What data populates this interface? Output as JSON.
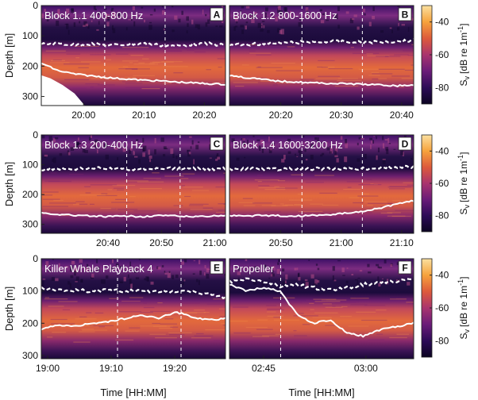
{
  "figure": {
    "depth_ylabel": "Depth [m]",
    "time_xlabel": "Time [HH:MM]"
  },
  "colorbar": {
    "label": "S",
    "label_sub": "v",
    "label_units": "[dB re 1m",
    "label_sup": "-1",
    "label_close": "]",
    "ticks": [
      "-40",
      "-60",
      "-80"
    ],
    "range": [
      -90,
      -30
    ],
    "colors": [
      "#0b0421",
      "#2c0b57",
      "#6a1c78",
      "#a9346e",
      "#dd5a3b",
      "#f6a23c",
      "#fbe0a0"
    ]
  },
  "chart_data": [
    {
      "type": "heatmap",
      "panel_letter": "A",
      "title": "Block 1.1 400-800 Hz",
      "xticks": [
        "20:00",
        "20:10",
        "20:20"
      ],
      "xtick_min": [
        0,
        10,
        20
      ],
      "xrange_min": [
        -7,
        23.5
      ],
      "yticks": [
        "0",
        "100",
        "200",
        "300"
      ],
      "ylim": [
        0,
        330
      ],
      "dashed_lines_min": [
        3.5,
        13.5
      ],
      "layer_top_depth_m": [
        128,
        125,
        130,
        126,
        132,
        128,
        125,
        130,
        134,
        128,
        126,
        131
      ],
      "layer_bottom_depth_m": [
        190,
        215,
        226,
        232,
        238,
        242,
        246,
        248,
        252,
        255,
        258,
        260
      ],
      "seafloor_mask": true
    },
    {
      "type": "heatmap",
      "panel_letter": "B",
      "title": "Block 1.2 800-1600 Hz",
      "xticks": [
        "20:20",
        "20:30",
        "20:40"
      ],
      "xtick_min": [
        20,
        30,
        40
      ],
      "xrange_min": [
        11.5,
        42
      ],
      "yticks": [],
      "ylim": [
        0,
        330
      ],
      "dashed_lines_min": [
        23.5,
        33.5
      ],
      "layer_top_depth_m": [
        130,
        128,
        126,
        124,
        122,
        120,
        118,
        120,
        122,
        120,
        118,
        115
      ],
      "layer_bottom_depth_m": [
        230,
        238,
        244,
        250,
        252,
        255,
        257,
        258,
        260,
        262,
        265,
        262
      ],
      "seafloor_mask": false
    },
    {
      "type": "heatmap",
      "panel_letter": "C",
      "title": "Block 1.3 200-400 Hz",
      "xticks": [
        "20:40",
        "20:50",
        "21:00"
      ],
      "xtick_min": [
        40,
        50,
        60
      ],
      "xrange_min": [
        27.5,
        62
      ],
      "yticks": [
        "0",
        "100",
        "200",
        "300"
      ],
      "ylim": [
        0,
        330
      ],
      "dashed_lines_min": [
        43.5,
        53.5
      ],
      "layer_top_depth_m": [
        115,
        113,
        114,
        112,
        113,
        115,
        114,
        112,
        113,
        112,
        114,
        113
      ],
      "layer_bottom_depth_m": [
        262,
        266,
        270,
        272,
        274,
        272,
        274,
        270,
        272,
        274,
        272,
        270
      ],
      "seafloor_mask": false
    },
    {
      "type": "heatmap",
      "panel_letter": "D",
      "title": "Block 1.4 1600-3200 Hz",
      "xticks": [
        "20:50",
        "21:00",
        "21:10"
      ],
      "xtick_min": [
        50,
        60,
        70
      ],
      "xrange_min": [
        41.5,
        72
      ],
      "yticks": [],
      "ylim": [
        0,
        330
      ],
      "dashed_lines_min": [
        53.5,
        63.5
      ],
      "layer_top_depth_m": [
        115,
        114,
        113,
        115,
        114,
        113,
        114,
        115,
        113,
        110,
        108,
        106
      ],
      "layer_bottom_depth_m": [
        270,
        272,
        270,
        271,
        272,
        270,
        268,
        262,
        255,
        245,
        232,
        220
      ],
      "seafloor_mask": false
    },
    {
      "type": "heatmap",
      "panel_letter": "E",
      "title": "Killer Whale Playback 4",
      "xticks": [
        "19:00",
        "19:10",
        "19:20"
      ],
      "xtick_min": [
        0,
        10,
        20
      ],
      "xrange_min": [
        -1,
        28
      ],
      "yticks": [
        "0",
        "100",
        "200",
        "300"
      ],
      "ylim": [
        0,
        310
      ],
      "dashed_lines_min": [
        11,
        21
      ],
      "layer_top_depth_m": [
        92,
        96,
        98,
        100,
        98,
        100,
        99,
        100,
        102,
        104,
        110,
        120
      ],
      "layer_bottom_depth_m": [
        220,
        205,
        210,
        200,
        195,
        185,
        175,
        185,
        165,
        180,
        190,
        185
      ],
      "seafloor_mask": false
    },
    {
      "type": "heatmap",
      "panel_letter": "F",
      "title": "Propeller",
      "xticks": [
        "02:45",
        "03:00"
      ],
      "xtick_min": [
        0,
        15
      ],
      "xrange_min": [
        -5,
        22
      ],
      "yticks": [],
      "ylim": [
        0,
        310
      ],
      "dashed_lines_min": [
        2.5
      ],
      "layer_top_depth_m": [
        70,
        65,
        70,
        85,
        80,
        90,
        95,
        90,
        80,
        75,
        70,
        65
      ],
      "layer_bottom_depth_m": [
        80,
        100,
        90,
        100,
        170,
        200,
        190,
        230,
        240,
        220,
        210,
        200
      ],
      "seafloor_mask": false
    }
  ]
}
